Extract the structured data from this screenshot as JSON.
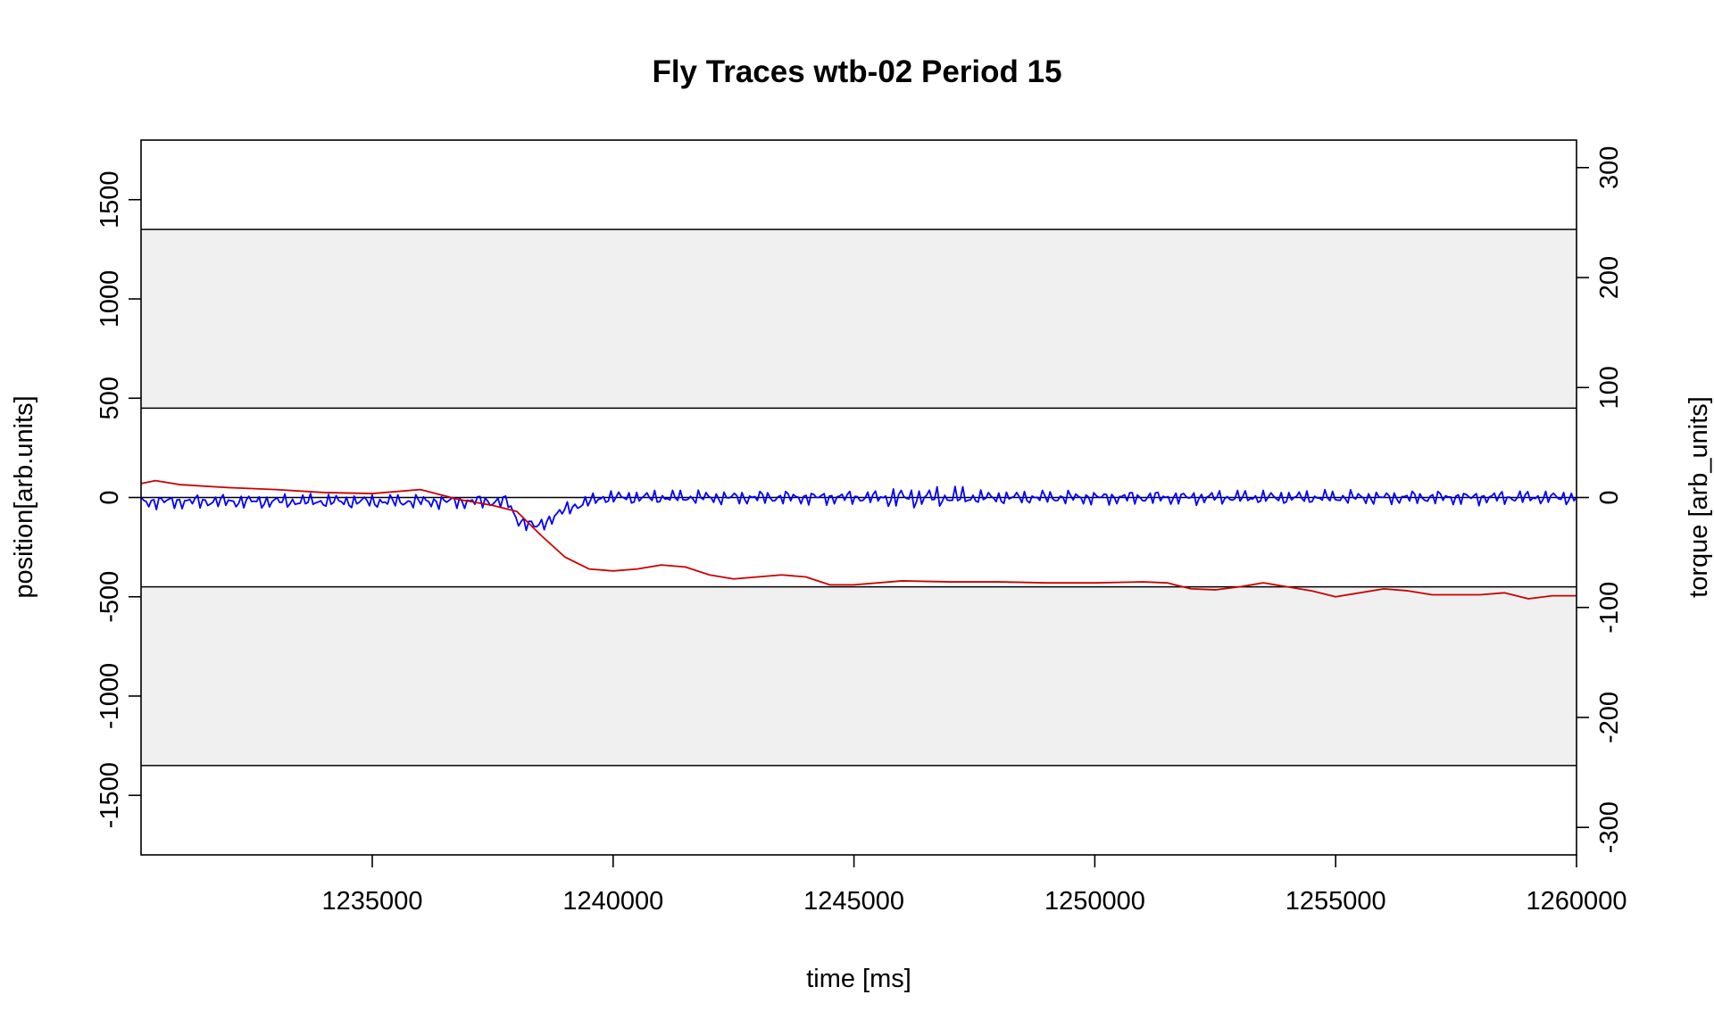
{
  "chart_data": {
    "type": "line",
    "title": "Fly Traces wtb-02 Period 15",
    "xlabel": "time [ms]",
    "ylabel": "position[arb.units]",
    "y2label": "torque [arb_units]",
    "xlim": [
      1230200,
      1260000
    ],
    "ylim": [
      -1800,
      1800
    ],
    "y2lim": [
      -325,
      325
    ],
    "x_ticks": [
      1235000,
      1240000,
      1245000,
      1250000,
      1255000,
      1260000
    ],
    "x_tick_labels": [
      "1235000",
      "1240000",
      "1245000",
      "1250000",
      "1255000",
      "1260000"
    ],
    "y_ticks": [
      1500,
      1000,
      500,
      0,
      -500,
      -1000,
      -1500
    ],
    "y_tick_labels": [
      "1500",
      "1000",
      "500",
      "0",
      "-500",
      "-1000",
      "-1500"
    ],
    "y2_ticks": [
      300,
      200,
      100,
      0,
      -100,
      -200,
      -300
    ],
    "y2_tick_labels": [
      "300",
      "200",
      "100",
      "0",
      "-100",
      "-200",
      "-300"
    ],
    "shaded_bands": [
      {
        "from": 450,
        "to": 1350,
        "color": "#f0f0f0"
      },
      {
        "from": -1350,
        "to": -450,
        "color": "#f0f0f0"
      }
    ],
    "reference_lines": [
      1350,
      450,
      0,
      -450,
      -1350
    ],
    "grid": false,
    "legend": "none",
    "series": [
      {
        "axis": "left",
        "color": "#0000ff",
        "trace": {
          "x_start": 1230200,
          "x_end": 1260000,
          "points": 560,
          "baseline_segments": [
            [
              1230200,
              -20
            ],
            [
              1237800,
              -20
            ],
            [
              1238000,
              -110
            ],
            [
              1238400,
              -150
            ],
            [
              1239100,
              -50
            ],
            [
              1239800,
              0
            ],
            [
              1260000,
              0
            ]
          ],
          "noise_amplitude": 45,
          "notes_visible_range": [
            -175,
            80
          ]
        }
      },
      {
        "axis": "left",
        "color": "#cc0000",
        "points": [
          [
            1230200,
            70
          ],
          [
            1230500,
            85
          ],
          [
            1231000,
            65
          ],
          [
            1232000,
            50
          ],
          [
            1233000,
            40
          ],
          [
            1234000,
            25
          ],
          [
            1235000,
            20
          ],
          [
            1236000,
            40
          ],
          [
            1236800,
            -10
          ],
          [
            1237500,
            -40
          ],
          [
            1238000,
            -70
          ],
          [
            1238500,
            -190
          ],
          [
            1239000,
            -300
          ],
          [
            1239500,
            -360
          ],
          [
            1240000,
            -370
          ],
          [
            1240500,
            -360
          ],
          [
            1241000,
            -340
          ],
          [
            1241500,
            -350
          ],
          [
            1242000,
            -390
          ],
          [
            1242500,
            -410
          ],
          [
            1243000,
            -400
          ],
          [
            1243500,
            -390
          ],
          [
            1244000,
            -400
          ],
          [
            1244500,
            -440
          ],
          [
            1245000,
            -440
          ],
          [
            1246000,
            -420
          ],
          [
            1247000,
            -425
          ],
          [
            1248000,
            -425
          ],
          [
            1249000,
            -430
          ],
          [
            1250000,
            -430
          ],
          [
            1251000,
            -425
          ],
          [
            1251500,
            -430
          ],
          [
            1252000,
            -460
          ],
          [
            1252500,
            -465
          ],
          [
            1253000,
            -450
          ],
          [
            1253500,
            -430
          ],
          [
            1254000,
            -450
          ],
          [
            1254500,
            -470
          ],
          [
            1255000,
            -500
          ],
          [
            1255500,
            -480
          ],
          [
            1256000,
            -460
          ],
          [
            1256500,
            -470
          ],
          [
            1257000,
            -490
          ],
          [
            1258000,
            -490
          ],
          [
            1258500,
            -480
          ],
          [
            1259000,
            -510
          ],
          [
            1259500,
            -495
          ],
          [
            1260000,
            -495
          ]
        ]
      }
    ]
  }
}
